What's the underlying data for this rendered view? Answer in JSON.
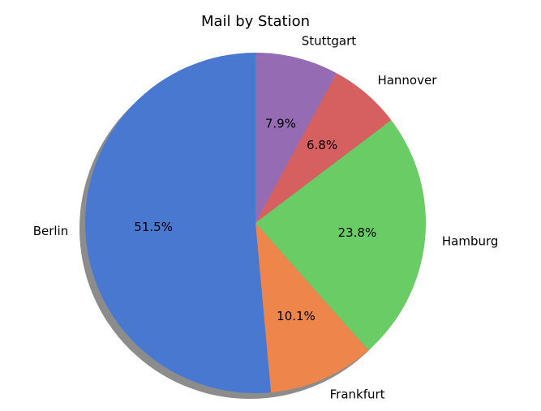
{
  "chart_data": {
    "type": "pie",
    "title": "Mail by Station",
    "categories": [
      "Stuttgart",
      "Hannover",
      "Hamburg",
      "Frankfurt",
      "Berlin"
    ],
    "values": [
      7.9,
      6.8,
      23.8,
      10.1,
      51.5
    ],
    "value_labels": [
      "7.9%",
      "6.8%",
      "23.8%",
      "10.1%",
      "51.5%"
    ],
    "colors": [
      "#956cb4",
      "#d65f5f",
      "#6acc64",
      "#ee854a",
      "#4878d0"
    ],
    "start_angle_deg": 90,
    "direction": "clockwise",
    "shadow": true,
    "legend": "none"
  }
}
